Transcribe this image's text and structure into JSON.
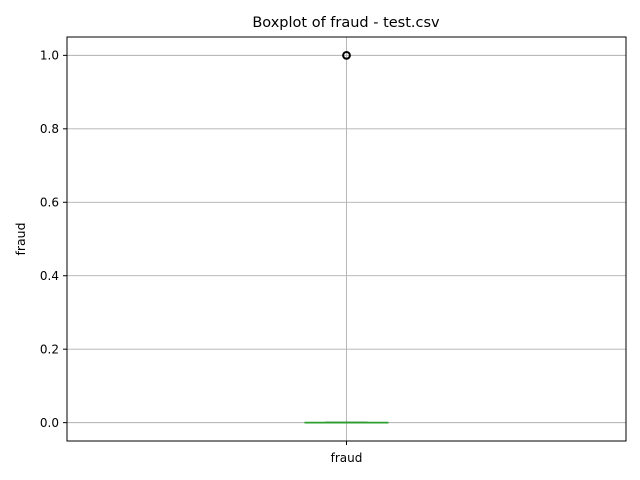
{
  "chart_data": {
    "type": "boxplot",
    "title": "Boxplot of fraud - test.csv",
    "xlabel": "",
    "ylabel": "fraud",
    "categories": [
      "fraud"
    ],
    "ylim": [
      -0.05,
      1.05
    ],
    "yticks": [
      0.0,
      0.2,
      0.4,
      0.6,
      0.8,
      1.0
    ],
    "ytick_labels": [
      "0.0",
      "0.2",
      "0.4",
      "0.6",
      "0.8",
      "1.0"
    ],
    "grid": true,
    "boxes": [
      {
        "category": "fraud",
        "q1": 0.0,
        "median": 0.0,
        "q3": 0.0,
        "whisker_low": 0.0,
        "whisker_high": 0.0,
        "outliers": [
          1.0
        ]
      }
    ],
    "colors": {
      "box": "#1f77b4",
      "median": "#2ca02c",
      "whisker": "#1f77b4",
      "cap": "#000000",
      "outlier": "#000000",
      "grid": "#b0b0b0",
      "axes": "#000000"
    }
  }
}
